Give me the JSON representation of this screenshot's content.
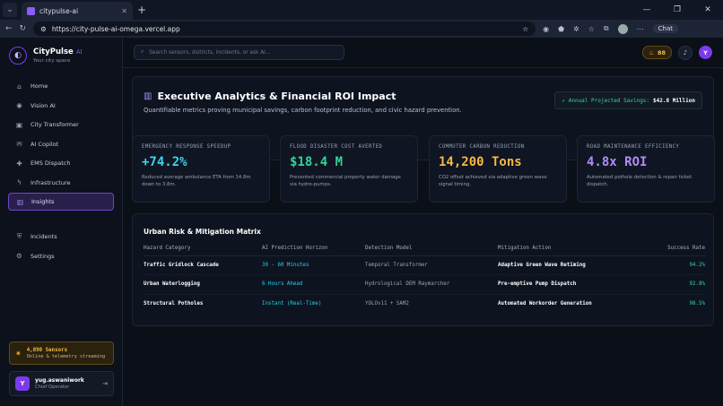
{
  "browser": {
    "tab_title": "citypulse-ai",
    "url": "https://city-pulse-ai-omega.vercel.app",
    "chat_label": "Chat"
  },
  "brand": {
    "name": "CityPulse",
    "ai_tag": "AI",
    "subtitle": "Your city space"
  },
  "nav": {
    "items": [
      {
        "label": "Home",
        "icon": "home-icon"
      },
      {
        "label": "Vision AI",
        "icon": "eye-icon"
      },
      {
        "label": "City Transformer",
        "icon": "cpu-icon"
      },
      {
        "label": "AI Copilot",
        "icon": "chat-icon"
      },
      {
        "label": "EMS Dispatch",
        "icon": "ambulance-icon"
      },
      {
        "label": "Infrastructure",
        "icon": "bolt-icon"
      },
      {
        "label": "Insights",
        "icon": "chart-icon",
        "active": true
      }
    ],
    "secondary": [
      {
        "label": "Incidents",
        "icon": "shield-icon"
      },
      {
        "label": "Settings",
        "icon": "gear-icon"
      }
    ]
  },
  "sensors": {
    "title": "4,890 Sensors",
    "subtitle": "Online & telemetry streaming"
  },
  "user": {
    "initial": "Y",
    "name": "yug.aswaniwork",
    "role": "Chief Operator"
  },
  "topbar": {
    "search_placeholder": "Search sensors, districts, incidents, or ask AI...",
    "score": "88",
    "avatar_initial": "Y"
  },
  "hero": {
    "title": "Executive Analytics & Financial ROI Impact",
    "subtitle": "Quantifiable metrics proving municipal savings, carbon footprint reduction, and civic hazard prevention.",
    "savings_label": "Annual Projected Savings:",
    "savings_value": "$42.8 Million"
  },
  "kpis": [
    {
      "label": "EMERGENCY RESPONSE SPEEDUP",
      "value": "+74.2%",
      "color": "#38d6f0",
      "desc": "Reduced average ambulance ETA from 14.8m down to 3.8m."
    },
    {
      "label": "FLOOD DISASTER COST AVERTED",
      "value": "$18.4 M",
      "color": "#34d399",
      "desc": "Prevented commercial property water damage via hydro-pumps."
    },
    {
      "label": "COMMUTER CARBON REDUCTION",
      "value": "14,200 Tons",
      "color": "#f5b942",
      "desc": "CO2 offset achieved via adaptive green wave signal timing."
    },
    {
      "label": "ROAD MAINTENANCE EFFICIENCY",
      "value": "4.8x ROI",
      "color": "#b18cf7",
      "desc": "Automated pothole detection & repair ticket dispatch."
    }
  ],
  "matrix": {
    "title": "Urban Risk & Mitigation Matrix",
    "headers": [
      "Hazard Category",
      "AI Prediction Horizon",
      "Detection Model",
      "Mitigation Action",
      "Success Rate"
    ],
    "rows": [
      [
        "Traffic Gridlock Cascade",
        "30 - 60 Minutes",
        "Temporal Transformer",
        "Adaptive Green Wave Retiming",
        "94.2%"
      ],
      [
        "Urban Waterlogging",
        "6 Hours Ahead",
        "Hydrological DEM Raymarcher",
        "Pre-emptive Pump Dispatch",
        "92.8%"
      ],
      [
        "Structural Potholes",
        "Instant (Real-Time)",
        "YOLOv11 + SAM2",
        "Automated Workorder Generation",
        "98.5%"
      ]
    ]
  }
}
